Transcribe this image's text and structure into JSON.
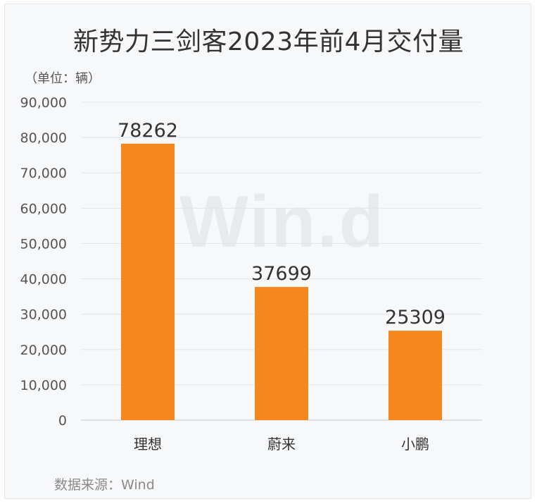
{
  "chart_data": {
    "type": "bar",
    "title": "新势力三剑客2023年前4月交付量",
    "unit_label": "（单位：辆）",
    "categories": [
      "理想",
      "蔚来",
      "小鹏"
    ],
    "values": [
      78262,
      37699,
      25309
    ],
    "data_labels": [
      "78262",
      "37699",
      "25309"
    ],
    "ylim": [
      0,
      90000
    ],
    "y_ticks": [
      0,
      10000,
      20000,
      30000,
      40000,
      50000,
      60000,
      70000,
      80000,
      90000
    ],
    "y_tick_labels": [
      "0",
      "10,000",
      "20,000",
      "30,000",
      "40,000",
      "50,000",
      "60,000",
      "70,000",
      "80,000",
      "90,000"
    ],
    "grid": true,
    "legend": "none",
    "bar_color": "#f5871f",
    "grid_color": "#e2e4e8",
    "axis_color": "#d6d8dc",
    "tick_label_color": "#555555",
    "data_label_color": "#333333"
  },
  "watermark": "Win.d",
  "source_text": "数据来源：Wind"
}
